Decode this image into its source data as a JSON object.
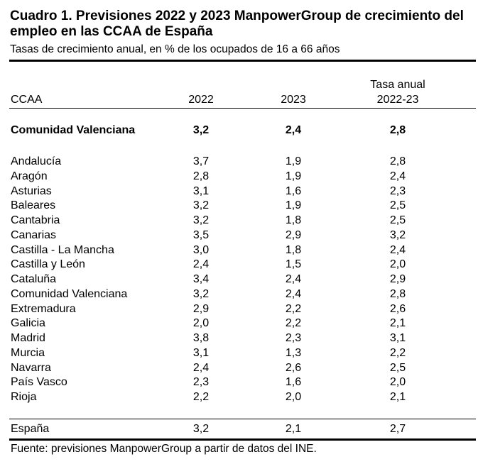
{
  "title": "Cuadro 1. Previsiones 2022 y 2023 ManpowerGroup de crecimiento del empleo en las CCAA de España",
  "subtitle": "Tasas de crecimiento anual, en % de los ocupados de 16 a 66 años",
  "headers": {
    "region": "CCAA",
    "y2022": "2022",
    "y2023": "2023",
    "rate_line1": "Tasa anual",
    "rate_line2": "2022-23"
  },
  "highlight": {
    "region": "Comunidad Valenciana",
    "y2022": "3,2",
    "y2023": "2,4",
    "rate": "2,8"
  },
  "rows": [
    {
      "region": "Andalucía",
      "y2022": "3,7",
      "y2023": "1,9",
      "rate": "2,8"
    },
    {
      "region": "Aragón",
      "y2022": "2,8",
      "y2023": "1,9",
      "rate": "2,4"
    },
    {
      "region": "Asturias",
      "y2022": "3,1",
      "y2023": "1,6",
      "rate": "2,3"
    },
    {
      "region": "Baleares",
      "y2022": "3,2",
      "y2023": "1,9",
      "rate": "2,5"
    },
    {
      "region": "Cantabria",
      "y2022": "3,2",
      "y2023": "1,8",
      "rate": "2,5"
    },
    {
      "region": "Canarias",
      "y2022": "3,5",
      "y2023": "2,9",
      "rate": "3,2"
    },
    {
      "region": "Castilla - La Mancha",
      "y2022": "3,0",
      "y2023": "1,8",
      "rate": "2,4"
    },
    {
      "region": "Castilla y León",
      "y2022": "2,4",
      "y2023": "1,5",
      "rate": "2,0"
    },
    {
      "region": "Cataluña",
      "y2022": "3,4",
      "y2023": "2,4",
      "rate": "2,9"
    },
    {
      "region": "Comunidad Valenciana",
      "y2022": "3,2",
      "y2023": "2,4",
      "rate": "2,8"
    },
    {
      "region": "Extremadura",
      "y2022": "2,9",
      "y2023": "2,2",
      "rate": "2,6"
    },
    {
      "region": "Galicia",
      "y2022": "2,0",
      "y2023": "2,2",
      "rate": "2,1"
    },
    {
      "region": "Madrid",
      "y2022": "3,8",
      "y2023": "2,3",
      "rate": "3,1"
    },
    {
      "region": "Murcia",
      "y2022": "3,1",
      "y2023": "1,3",
      "rate": "2,2"
    },
    {
      "region": "Navarra",
      "y2022": "2,4",
      "y2023": "2,6",
      "rate": "2,5"
    },
    {
      "region": "País Vasco",
      "y2022": "2,3",
      "y2023": "1,6",
      "rate": "2,0"
    },
    {
      "region": "Rioja",
      "y2022": "2,2",
      "y2023": "2,0",
      "rate": "2,1"
    }
  ],
  "total": {
    "region": "España",
    "y2022": "3,2",
    "y2023": "2,1",
    "rate": "2,7"
  },
  "source": "Fuente: previsiones ManpowerGroup a partir de datos del INE."
}
